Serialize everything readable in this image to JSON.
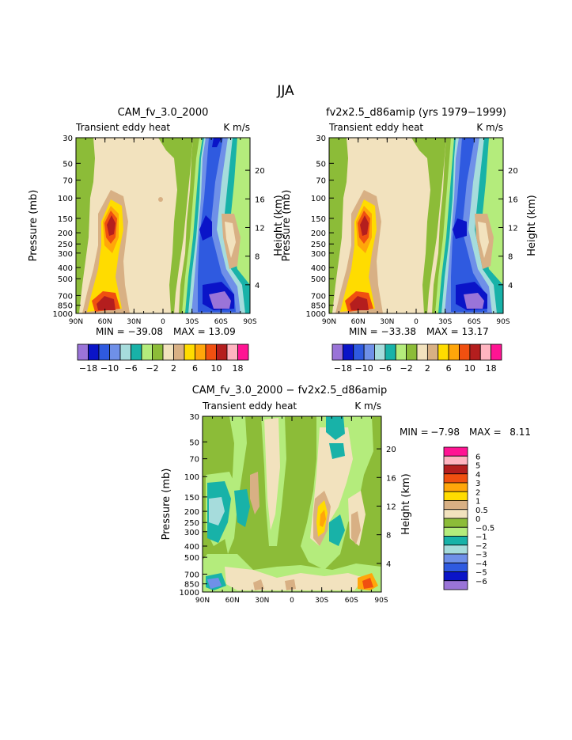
{
  "page_title": "JJA",
  "colors": {
    "top_scale": [
      "#9a74d8",
      "#0a14c8",
      "#2f5ae0",
      "#6f90e8",
      "#a6dcdc",
      "#18b2a8",
      "#b4ec7c",
      "#8cbc38",
      "#f2e2be",
      "#d8b084",
      "#ffdc00",
      "#ffa60a",
      "#f05010",
      "#b41e1e",
      "#ffb4c0",
      "#ff1493"
    ],
    "diff_scale": [
      "#ff1493",
      "#ffb4c0",
      "#b41e1e",
      "#f05010",
      "#ffa60a",
      "#ffdc00",
      "#d8b084",
      "#f2e2be",
      "#8cbc38",
      "#b4ec7c",
      "#18b2a8",
      "#a6dcdc",
      "#6f90e8",
      "#2f5ae0",
      "#0a14c8",
      "#9a74d8"
    ]
  },
  "chart_data": [
    {
      "type": "heatmap",
      "title": "CAM_fv_3.0_2000",
      "left_label": "Transient eddy heat",
      "right_label": "K m/s",
      "xlabel": "",
      "ylabel": "Pressure (mb)",
      "ylabel_right": "Height (km)",
      "x_ticks": [
        "90N",
        "60N",
        "30N",
        "0",
        "30S",
        "60S",
        "90S"
      ],
      "y_ticks": [
        "30",
        "50",
        "70",
        "100",
        "150",
        "200",
        "250",
        "300",
        "400",
        "500",
        "700",
        "850",
        "1000"
      ],
      "height_ticks": [
        "20",
        "16",
        "12",
        "8",
        "4"
      ],
      "min_label": "MIN = −39.08",
      "max_label": "MAX = 13.09",
      "min": -39.08,
      "max": 13.09,
      "colorbar_labels": [
        "−18",
        "−10",
        "−6",
        "−2",
        "2",
        "6",
        "10",
        "18"
      ]
    },
    {
      "type": "heatmap",
      "title": "fv2x2.5_d86amip (yrs 1979−1999)",
      "left_label": "Transient eddy heat",
      "right_label": "K m/s",
      "xlabel": "",
      "ylabel": "Pressure (mb)",
      "ylabel_right": "Height (km)",
      "x_ticks": [
        "90N",
        "60N",
        "30N",
        "0",
        "30S",
        "60S",
        "90S"
      ],
      "y_ticks": [
        "30",
        "50",
        "70",
        "100",
        "150",
        "200",
        "250",
        "300",
        "400",
        "500",
        "700",
        "850",
        "1000"
      ],
      "height_ticks": [
        "20",
        "16",
        "12",
        "8",
        "4"
      ],
      "min_label": "MIN = −33.38",
      "max_label": "MAX = 13.17",
      "min": -33.38,
      "max": 13.17,
      "colorbar_labels": [
        "−18",
        "−10",
        "−6",
        "−2",
        "2",
        "6",
        "10",
        "18"
      ]
    },
    {
      "type": "heatmap",
      "title": "CAM_fv_3.0_2000 − fv2x2.5_d86amip",
      "left_label": "Transient eddy heat",
      "right_label": "K m/s",
      "xlabel": "",
      "ylabel": "Pressure (mb)",
      "ylabel_right": "Height (km)",
      "x_ticks": [
        "90N",
        "60N",
        "30N",
        "0",
        "30S",
        "60S",
        "90S"
      ],
      "y_ticks": [
        "30",
        "50",
        "70",
        "100",
        "150",
        "200",
        "250",
        "300",
        "400",
        "500",
        "700",
        "850",
        "1000"
      ],
      "height_ticks": [
        "20",
        "16",
        "12",
        "8",
        "4"
      ],
      "min_label": "MIN =",
      "min_value": "−7.98",
      "max_label": "MAX =",
      "max_value": "8.11",
      "min": -7.98,
      "max": 8.11,
      "colorbar_labels": [
        "6",
        "5",
        "4",
        "3",
        "2",
        "1",
        "0.5",
        "0",
        "−0.5",
        "−1",
        "−2",
        "−3",
        "−4",
        "−5",
        "−6"
      ]
    }
  ]
}
